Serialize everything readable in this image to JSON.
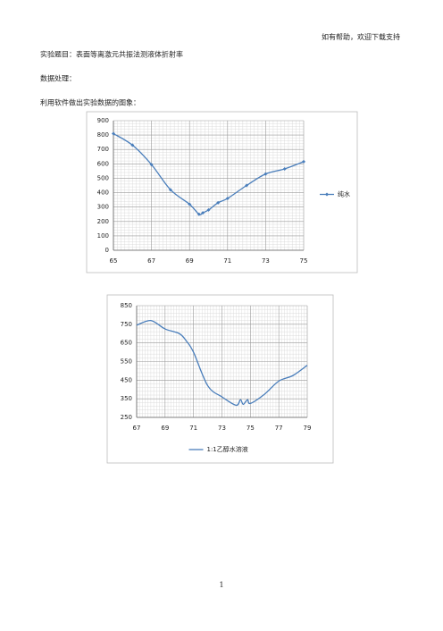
{
  "header": "如有帮助，欢迎下载支持",
  "title": "实验题目：表面等离激元共振法测液体折射率",
  "section": "数据处理：",
  "caption": "利用软件做出实验数据的图象：",
  "page_number": "1",
  "chart_data": [
    {
      "type": "line",
      "legend": "right",
      "markers": true,
      "grid": true,
      "minor_grid": true,
      "xlim": [
        65,
        75
      ],
      "xticks": [
        65,
        67,
        69,
        71,
        73,
        75
      ],
      "ylim": [
        0,
        900
      ],
      "yticks": [
        0,
        100,
        200,
        300,
        400,
        500,
        600,
        700,
        800,
        900
      ],
      "series": [
        {
          "name": "纯水",
          "color": "#4a7ebb",
          "x": [
            65,
            66,
            67,
            68,
            69,
            69.5,
            69.7,
            70,
            70.5,
            71,
            72,
            73,
            74,
            75
          ],
          "values": [
            810,
            730,
            595,
            420,
            320,
            250,
            260,
            280,
            330,
            360,
            450,
            530,
            565,
            615
          ]
        }
      ]
    },
    {
      "type": "line",
      "legend": "bottom",
      "markers": false,
      "grid": true,
      "minor_grid": true,
      "xlim": [
        67,
        79
      ],
      "xticks": [
        67,
        69,
        71,
        73,
        75,
        77,
        79
      ],
      "ylim": [
        250,
        850
      ],
      "yticks": [
        250,
        350,
        450,
        550,
        650,
        750,
        850
      ],
      "series": [
        {
          "name": "1:1乙醇水溶液",
          "color": "#4a7ebb",
          "x": [
            67,
            68,
            69,
            70,
            70.5,
            71,
            72,
            73,
            74,
            74.3,
            74.5,
            74.8,
            75,
            76,
            77,
            78,
            79
          ],
          "values": [
            745,
            770,
            725,
            700,
            660,
            600,
            420,
            360,
            315,
            345,
            320,
            345,
            325,
            375,
            445,
            475,
            530
          ]
        }
      ]
    }
  ]
}
